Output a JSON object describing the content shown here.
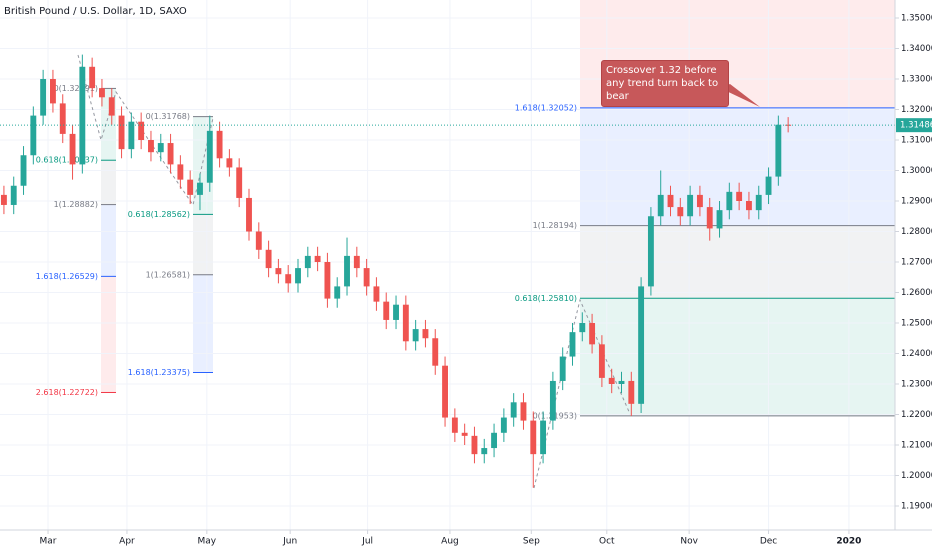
{
  "chart_data": {
    "type": "candlestick",
    "title": "British Pound / U.S. Dollar, 1D, SAXO",
    "up_color": "#26a69a",
    "down_color": "#ef5350",
    "open": [
      1.292,
      1.2887,
      1.295,
      1.305,
      1.318,
      1.33,
      1.322,
      1.312,
      1.302,
      1.334,
      1.327,
      1.324,
      1.318,
      1.307,
      1.316,
      1.31,
      1.306,
      1.309,
      1.302,
      1.297,
      1.292,
      1.296,
      1.313,
      1.304,
      1.301,
      1.291,
      1.28,
      1.274,
      1.268,
      1.266,
      1.263,
      1.268,
      1.272,
      1.27,
      1.258,
      1.262,
      1.272,
      1.268,
      1.262,
      1.257,
      1.251,
      1.256,
      1.244,
      1.248,
      1.245,
      1.236,
      1.219,
      1.214,
      1.213,
      1.207,
      1.209,
      1.214,
      1.219,
      1.224,
      1.218,
      1.207,
      1.218,
      1.231,
      1.239,
      1.247,
      1.25,
      1.243,
      1.232,
      1.23,
      1.231,
      1.2235,
      1.262,
      1.285,
      1.292,
      1.288,
      1.285,
      1.292,
      1.288,
      1.281,
      1.287,
      1.293,
      1.29,
      1.287,
      1.292,
      1.298,
      1.315
    ],
    "high": [
      1.295,
      1.298,
      1.308,
      1.321,
      1.333,
      1.333,
      1.325,
      1.315,
      1.338,
      1.337,
      1.33,
      1.327,
      1.321,
      1.319,
      1.319,
      1.313,
      1.312,
      1.312,
      1.305,
      1.3,
      1.299,
      1.318,
      1.316,
      1.307,
      1.304,
      1.294,
      1.283,
      1.277,
      1.271,
      1.269,
      1.271,
      1.275,
      1.275,
      1.273,
      1.265,
      1.278,
      1.275,
      1.271,
      1.265,
      1.26,
      1.259,
      1.259,
      1.251,
      1.251,
      1.248,
      1.239,
      1.222,
      1.217,
      1.216,
      1.212,
      1.217,
      1.222,
      1.227,
      1.227,
      1.221,
      1.221,
      1.234,
      1.242,
      1.25,
      1.2535,
      1.253,
      1.246,
      1.235,
      1.234,
      1.234,
      1.265,
      1.288,
      1.3,
      1.295,
      1.291,
      1.295,
      1.295,
      1.291,
      1.29,
      1.296,
      1.296,
      1.293,
      1.295,
      1.301,
      1.318,
      1.3175
    ],
    "low": [
      1.2857,
      1.2857,
      1.292,
      1.302,
      1.315,
      1.319,
      1.309,
      1.297,
      1.299,
      1.324,
      1.321,
      1.315,
      1.304,
      1.304,
      1.307,
      1.303,
      1.303,
      1.299,
      1.294,
      1.289,
      1.287,
      1.293,
      1.301,
      1.298,
      1.288,
      1.277,
      1.271,
      1.265,
      1.263,
      1.26,
      1.26,
      1.265,
      1.267,
      1.255,
      1.255,
      1.259,
      1.265,
      1.259,
      1.254,
      1.248,
      1.248,
      1.241,
      1.241,
      1.242,
      1.233,
      1.216,
      1.211,
      1.21,
      1.204,
      1.204,
      1.206,
      1.211,
      1.216,
      1.215,
      1.196,
      1.204,
      1.215,
      1.228,
      1.236,
      1.244,
      1.24,
      1.229,
      1.227,
      1.227,
      1.2195,
      1.2205,
      1.259,
      1.282,
      1.285,
      1.282,
      1.282,
      1.285,
      1.277,
      1.278,
      1.284,
      1.287,
      1.284,
      1.284,
      1.289,
      1.295,
      1.3125
    ],
    "close": [
      1.2887,
      1.295,
      1.305,
      1.318,
      1.33,
      1.322,
      1.312,
      1.302,
      1.334,
      1.327,
      1.324,
      1.318,
      1.307,
      1.316,
      1.31,
      1.306,
      1.309,
      1.302,
      1.297,
      1.292,
      1.296,
      1.313,
      1.304,
      1.301,
      1.291,
      1.28,
      1.274,
      1.268,
      1.266,
      1.263,
      1.268,
      1.272,
      1.27,
      1.258,
      1.262,
      1.272,
      1.268,
      1.262,
      1.257,
      1.251,
      1.256,
      1.244,
      1.248,
      1.245,
      1.236,
      1.219,
      1.214,
      1.213,
      1.207,
      1.209,
      1.214,
      1.219,
      1.224,
      1.218,
      1.207,
      1.218,
      1.231,
      1.239,
      1.247,
      1.25,
      1.243,
      1.232,
      1.23,
      1.231,
      1.2235,
      1.262,
      1.285,
      1.292,
      1.288,
      1.285,
      1.292,
      1.288,
      1.281,
      1.287,
      1.293,
      1.29,
      1.287,
      1.292,
      1.298,
      1.315,
      1.3149
    ],
    "xlim": [
      -0.4,
      90.9
    ],
    "xticks": [
      {
        "value": 4.5,
        "label": "Mar"
      },
      {
        "value": 12.55,
        "label": "Apr"
      },
      {
        "value": 20.7,
        "label": "May"
      },
      {
        "value": 29.2,
        "label": "Jun"
      },
      {
        "value": 37.1,
        "label": "Jul"
      },
      {
        "value": 45.5,
        "label": "Aug"
      },
      {
        "value": 53.8,
        "label": "Sep"
      },
      {
        "value": 61.5,
        "label": "Oct"
      },
      {
        "value": 69.9,
        "label": "Nov"
      },
      {
        "value": 78,
        "label": "Dec"
      },
      {
        "value": 86.2,
        "label": "2020"
      }
    ],
    "ylim": [
      1.18213,
      1.3559
    ],
    "yticks": [
      {
        "value": 1.19,
        "label": "1.19000"
      },
      {
        "value": 1.2,
        "label": "1.20000"
      },
      {
        "value": 1.21,
        "label": "1.21000"
      },
      {
        "value": 1.22,
        "label": "1.22000"
      },
      {
        "value": 1.23,
        "label": "1.23000"
      },
      {
        "value": 1.24,
        "label": "1.24000"
      },
      {
        "value": 1.25,
        "label": "1.25000"
      },
      {
        "value": 1.26,
        "label": "1.26000"
      },
      {
        "value": 1.27,
        "label": "1.27000"
      },
      {
        "value": 1.28,
        "label": "1.28000"
      },
      {
        "value": 1.29,
        "label": "1.29000"
      },
      {
        "value": 1.3,
        "label": "1.30000"
      },
      {
        "value": 1.31,
        "label": "1.31000"
      },
      {
        "value": 1.32,
        "label": "1.32000"
      },
      {
        "value": 1.33,
        "label": "1.33000"
      },
      {
        "value": 1.34,
        "label": "1.34000"
      },
      {
        "value": 1.35,
        "label": "1.35000"
      }
    ],
    "grid": true,
    "last_price": {
      "value": 1.31486,
      "label": "1.31486",
      "color": "#26a69a"
    },
    "fibs": [
      {
        "levels": [
          {
            "value": 1.32691,
            "label": "0(1.32691)",
            "color": "#787b86"
          },
          {
            "value": 1.30337,
            "label": "0.618(1.30337)",
            "color": "#089981"
          },
          {
            "value": 1.28882,
            "label": "1(1.28882)",
            "color": "#787b86"
          },
          {
            "value": 1.26529,
            "label": "1.618(1.26529)",
            "color": "#2962ff"
          },
          {
            "value": 1.22722,
            "label": "2.618(1.22722)",
            "color": "#f23645"
          }
        ]
      },
      {
        "levels": [
          {
            "value": 1.31768,
            "label": "0(1.31768)",
            "color": "#787b86"
          },
          {
            "value": 1.28562,
            "label": "0.618(1.28562)",
            "color": "#089981"
          },
          {
            "value": 1.26581,
            "label": "1(1.26581)",
            "color": "#787b86"
          },
          {
            "value": 1.23375,
            "label": "1.618(1.23375)",
            "color": "#2962ff"
          }
        ]
      },
      {
        "levels": [
          {
            "value": 1.21953,
            "label": "0(1.21953)",
            "color": "#787b86"
          },
          {
            "value": 1.2581,
            "label": "0.618(1.25810)",
            "color": "#089981"
          },
          {
            "value": 1.28194,
            "label": "1(1.28194)",
            "color": "#787b86"
          },
          {
            "value": 1.32052,
            "label": "1.618(1.32052)",
            "color": "#2962ff"
          }
        ]
      }
    ],
    "annotation": "Crossover 1.32 before any trend turn back to bear"
  }
}
